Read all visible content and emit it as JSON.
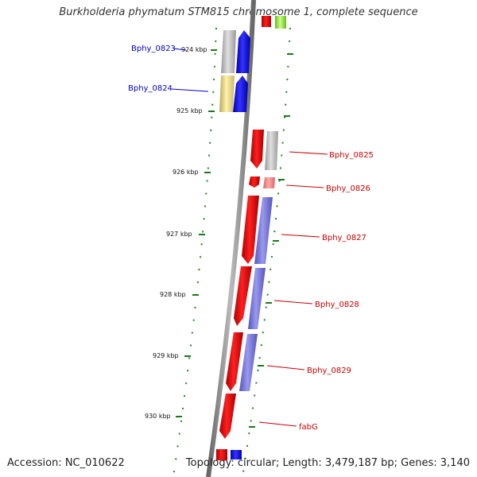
{
  "title": "Burkholderia phymatum STM815 chromosome 1, complete sequence",
  "accession": "Accession: NC_010622",
  "topology": "Topology: circular; Length: 3,479,187 bp; Genes: 3,140",
  "colors": {
    "backbone": "#888888",
    "tick": "#1a7a1a",
    "forward_left": "#0000cc",
    "forward_right": "#cc0000",
    "label_left": "#0000cc",
    "label_right": "#cc0000"
  },
  "ticks": [
    "924 kbp",
    "925 kbp",
    "926 kbp",
    "927 kbp",
    "928 kbp",
    "929 kbp",
    "930 kbp"
  ],
  "left_labels": [
    {
      "id": "bphy-0823",
      "text": "Bphy_0823"
    },
    {
      "id": "bphy-0824",
      "text": "Bphy_0824"
    }
  ],
  "right_labels": [
    {
      "id": "bphy-0825",
      "text": "Bphy_0825"
    },
    {
      "id": "bphy-0826",
      "text": "Bphy_0826"
    },
    {
      "id": "bphy-0827",
      "text": "Bphy_0827"
    },
    {
      "id": "bphy-0828",
      "text": "Bphy_0828"
    },
    {
      "id": "bphy-0829",
      "text": "Bphy_0829"
    },
    {
      "id": "fabg",
      "text": "fabG"
    }
  ]
}
